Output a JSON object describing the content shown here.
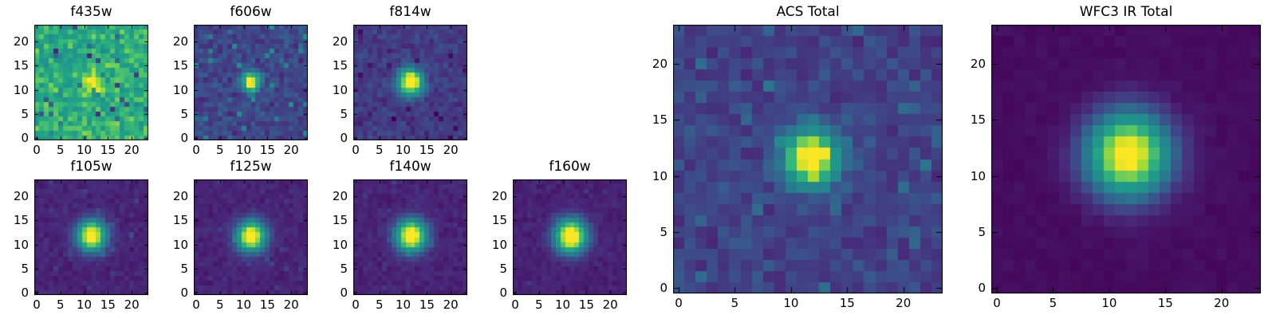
{
  "figure": {
    "background": "#ffffff",
    "text_color": "#000000",
    "frame_color": "#000000"
  },
  "chart_data": {
    "type": "heatmap",
    "colormap": "viridis",
    "description": "Grid of astronomical image cutouts (24x24 pixel stamps) of a single point source seen through HST filters, plus combined ACS Total and WFC3 IR Total stacks. Each panel shows a noisy background with a bright central source near pixel (11.5, 11.5).",
    "grid_size": 24,
    "x_ticks": [
      0,
      5,
      10,
      15,
      20
    ],
    "y_ticks": [
      0,
      5,
      10,
      15,
      20
    ],
    "axis_range": [
      -0.5,
      23.5
    ],
    "legend": "none",
    "grid": false,
    "colormap_stops": [
      "#440154",
      "#482878",
      "#3e4a89",
      "#31688e",
      "#26828e",
      "#21918c",
      "#1f9e89",
      "#35b779",
      "#6ece58",
      "#b5de2b",
      "#fde725"
    ],
    "panels": [
      {
        "title": "f435w",
        "size": "small",
        "row": 0,
        "col": 0,
        "seed": 101,
        "background": {
          "level": 0.66,
          "noise": 0.2,
          "spike_p": 0.06,
          "spike_amp": -0.42
        },
        "source": {
          "cx": 11.6,
          "cy": 11.5,
          "sigma": 1.3,
          "peak": 0.42
        }
      },
      {
        "title": "f606w",
        "size": "small",
        "row": 0,
        "col": 1,
        "seed": 202,
        "background": {
          "level": 0.19,
          "noise": 0.1,
          "spike_p": 0.05,
          "spike_amp": 0.22
        },
        "source": {
          "cx": 11.5,
          "cy": 11.6,
          "sigma": 1.35,
          "peak": 0.92
        }
      },
      {
        "title": "f814w",
        "size": "small",
        "row": 0,
        "col": 2,
        "seed": 303,
        "background": {
          "level": 0.16,
          "noise": 0.08,
          "spike_p": 0.04,
          "spike_amp": -0.1
        },
        "source": {
          "cx": 11.6,
          "cy": 11.6,
          "sigma": 1.8,
          "peak": 1.0
        }
      },
      {
        "title": "f105w",
        "size": "small",
        "row": 1,
        "col": 0,
        "seed": 404,
        "background": {
          "level": 0.09,
          "noise": 0.045,
          "spike_p": 0.03,
          "spike_amp": 0.06
        },
        "source": {
          "cx": 11.6,
          "cy": 11.8,
          "sigma": 2.1,
          "peak": 1.05
        }
      },
      {
        "title": "f125w",
        "size": "small",
        "row": 1,
        "col": 1,
        "seed": 505,
        "background": {
          "level": 0.09,
          "noise": 0.045,
          "spike_p": 0.03,
          "spike_amp": 0.06
        },
        "source": {
          "cx": 11.6,
          "cy": 11.7,
          "sigma": 2.1,
          "peak": 1.05
        }
      },
      {
        "title": "f140w",
        "size": "small",
        "row": 1,
        "col": 2,
        "seed": 606,
        "background": {
          "level": 0.09,
          "noise": 0.045,
          "spike_p": 0.03,
          "spike_amp": 0.06
        },
        "source": {
          "cx": 11.7,
          "cy": 11.8,
          "sigma": 2.2,
          "peak": 1.08
        }
      },
      {
        "title": "f160w",
        "size": "small",
        "row": 1,
        "col": 3,
        "seed": 707,
        "background": {
          "level": 0.085,
          "noise": 0.04,
          "spike_p": 0.03,
          "spike_amp": 0.05
        },
        "source": {
          "cx": 11.7,
          "cy": 11.7,
          "sigma": 2.3,
          "peak": 1.1
        }
      },
      {
        "title": "ACS Total",
        "size": "large",
        "row": 0,
        "col": 4,
        "seed": 808,
        "background": {
          "level": 0.18,
          "noise": 0.09,
          "spike_p": 0.05,
          "spike_amp": 0.1
        },
        "source": {
          "cx": 11.8,
          "cy": 11.6,
          "sigma": 1.6,
          "peak": 1.0
        }
      },
      {
        "title": "WFC3 IR Total",
        "size": "large",
        "row": 0,
        "col": 5,
        "seed": 909,
        "background": {
          "level": 0.03,
          "noise": 0.02,
          "spike_p": 0.0,
          "spike_amp": 0.0
        },
        "source": {
          "cx": 11.7,
          "cy": 11.9,
          "sigma": 2.5,
          "peak": 1.05
        }
      }
    ]
  }
}
